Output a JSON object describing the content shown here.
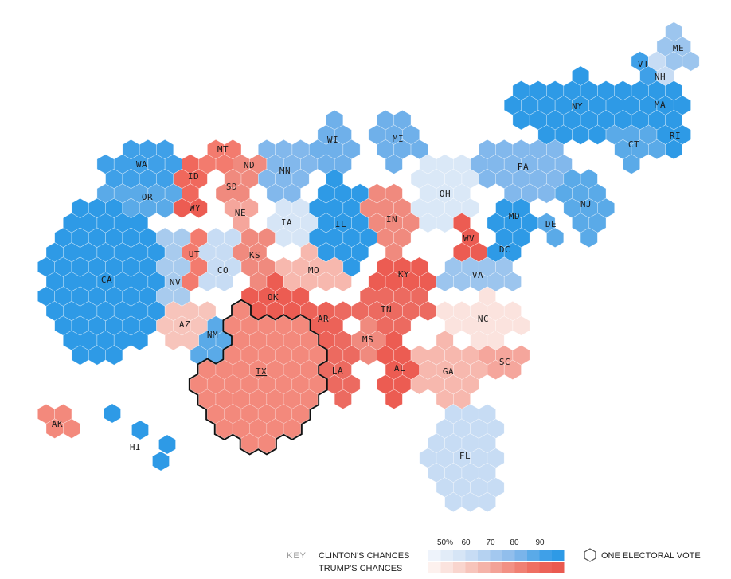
{
  "map": {
    "states": [
      {
        "code": "WA",
        "color": "#3fa0e8"
      },
      {
        "code": "OR",
        "color": "#5aaae8"
      },
      {
        "code": "CA",
        "color": "#2e9ae6"
      },
      {
        "code": "ID",
        "color": "#f0685c"
      },
      {
        "code": "MT",
        "color": "#f37b6e"
      },
      {
        "code": "ND",
        "color": "#f08a7e"
      },
      {
        "code": "SD",
        "color": "#f08a7e"
      },
      {
        "code": "WY",
        "color": "#ec5c52"
      },
      {
        "code": "NE",
        "color": "#f5a69c"
      },
      {
        "code": "NV",
        "color": "#a8cbee"
      },
      {
        "code": "UT",
        "color": "#f37b6e"
      },
      {
        "code": "CO",
        "color": "#c7dcf4"
      },
      {
        "code": "AZ",
        "color": "#f7c4bb"
      },
      {
        "code": "NM",
        "color": "#5aaae8"
      },
      {
        "code": "TX",
        "color": "#f3897c"
      },
      {
        "code": "KS",
        "color": "#f08a7e"
      },
      {
        "code": "OK",
        "color": "#ec5c52"
      },
      {
        "code": "MN",
        "color": "#82b8ec"
      },
      {
        "code": "IA",
        "color": "#d6e5f6"
      },
      {
        "code": "MO",
        "color": "#f7b8ae"
      },
      {
        "code": "AR",
        "color": "#ec6258"
      },
      {
        "code": "LA",
        "color": "#ec6a60"
      },
      {
        "code": "WI",
        "color": "#6fb0ea"
      },
      {
        "code": "IL",
        "color": "#2e9ae6"
      },
      {
        "code": "MI",
        "color": "#6fb0ea"
      },
      {
        "code": "IN",
        "color": "#f08a7e"
      },
      {
        "code": "OH",
        "color": "#dae8f7"
      },
      {
        "code": "KY",
        "color": "#ec5c52"
      },
      {
        "code": "TN",
        "color": "#ec6a60"
      },
      {
        "code": "MS",
        "color": "#f08a7e"
      },
      {
        "code": "AL",
        "color": "#ec5c52"
      },
      {
        "code": "GA",
        "color": "#f7b8ae"
      },
      {
        "code": "FL",
        "color": "#c7dcf4"
      },
      {
        "code": "SC",
        "color": "#f5a69c"
      },
      {
        "code": "NC",
        "color": "#fbe3de"
      },
      {
        "code": "VA",
        "color": "#9cc5ee"
      },
      {
        "code": "WV",
        "color": "#ec5c52"
      },
      {
        "code": "PA",
        "color": "#82b8ec"
      },
      {
        "code": "MD",
        "color": "#2e9ae6"
      },
      {
        "code": "DE",
        "color": "#5aaae8"
      },
      {
        "code": "DC",
        "color": "#2e9ae6"
      },
      {
        "code": "NJ",
        "color": "#5aaae8"
      },
      {
        "code": "NY",
        "color": "#2e9ae6"
      },
      {
        "code": "CT",
        "color": "#5aaae8"
      },
      {
        "code": "RI",
        "color": "#2e9ae6"
      },
      {
        "code": "MA",
        "color": "#2e9ae6"
      },
      {
        "code": "VT",
        "color": "#3fa0e8"
      },
      {
        "code": "NH",
        "color": "#c7dcf4"
      },
      {
        "code": "ME",
        "color": "#9cc5ee"
      },
      {
        "code": "AK",
        "color": "#f3897c"
      },
      {
        "code": "HI",
        "color": "#2e9ae6"
      }
    ],
    "highlighted_state": "TX"
  },
  "legend": {
    "key_label": "KEY",
    "clinton_label": "CLINTON'S CHANCES",
    "trump_label": "TRUMP'S CHANCES",
    "ticks": [
      "50%",
      "60",
      "70",
      "80",
      "90"
    ],
    "clinton_scale": [
      "#eef3fb",
      "#e2ecf8",
      "#d6e5f6",
      "#c7dcf4",
      "#b5d2f1",
      "#a3c8ef",
      "#91beec",
      "#7ab4ea",
      "#5aaae8",
      "#3fa0e8",
      "#2e9ae6"
    ],
    "trump_scale": [
      "#fdf1ee",
      "#fbe3de",
      "#f9d5ce",
      "#f7c4bb",
      "#f5b3a9",
      "#f3a297",
      "#f29185",
      "#f08073",
      "#ee6f62",
      "#ec6258",
      "#ea5a50"
    ],
    "electoral_vote_label": "ONE ELECTORAL VOTE"
  }
}
